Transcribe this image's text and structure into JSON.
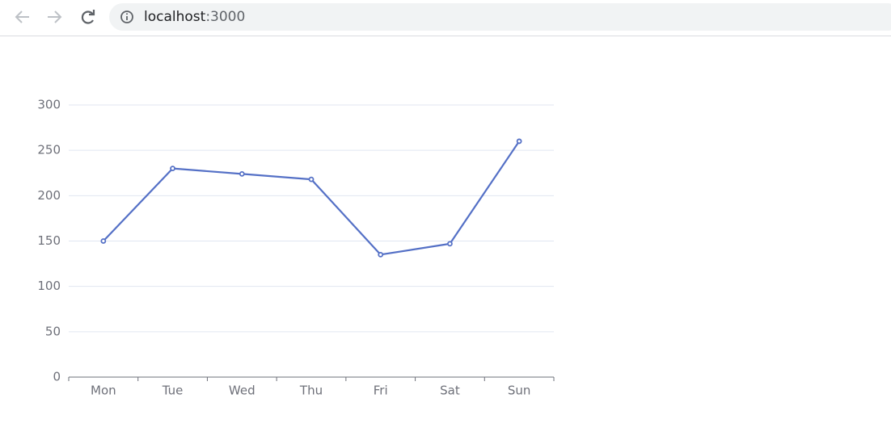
{
  "browser": {
    "host": "localhost",
    "port": ":3000"
  },
  "chart_data": {
    "type": "line",
    "categories": [
      "Mon",
      "Tue",
      "Wed",
      "Thu",
      "Fri",
      "Sat",
      "Sun"
    ],
    "series": [
      {
        "color": "#5470c6",
        "values": [
          150,
          230,
          224,
          218,
          135,
          147,
          260
        ]
      }
    ],
    "ylim": [
      0,
      300
    ],
    "yticks": [
      0,
      50,
      100,
      150,
      200,
      250,
      300
    ],
    "grid": true
  }
}
